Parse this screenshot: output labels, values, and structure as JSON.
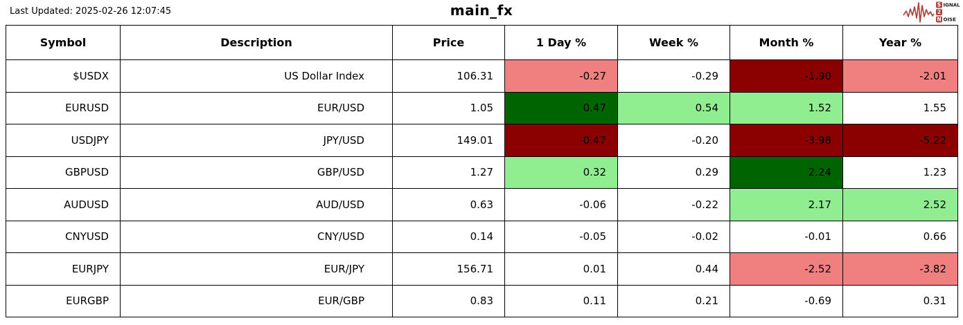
{
  "header": {
    "last_updated": "Last Updated: 2025-02-26 12:07:45",
    "title": "main_fx",
    "logo": {
      "wave_color": "#b0403a",
      "line1_box": "S",
      "line1_rest": "IGNAL",
      "line2_box": "2",
      "line3_box": "N",
      "line3_rest": "OISE"
    }
  },
  "colors": {
    "white": "#ffffff",
    "lightred": "#f08080",
    "darkred": "#8b0000",
    "lightgreen": "#90ee90",
    "darkgreen": "#006400"
  },
  "table": {
    "headers": [
      "Symbol",
      "Description",
      "Price",
      "1 Day %",
      "Week %",
      "Month %",
      "Year %"
    ],
    "rows": [
      {
        "symbol": "$USDX",
        "description": "US Dollar Index",
        "price": "106.31",
        "pcts": [
          {
            "v": "-0.27",
            "bg": "lightred"
          },
          {
            "v": "-0.29",
            "bg": "white"
          },
          {
            "v": "-1.90",
            "bg": "darkred"
          },
          {
            "v": "-2.01",
            "bg": "lightred"
          }
        ]
      },
      {
        "symbol": "EURUSD",
        "description": "EUR/USD",
        "price": "1.05",
        "pcts": [
          {
            "v": "0.47",
            "bg": "darkgreen"
          },
          {
            "v": "0.54",
            "bg": "lightgreen"
          },
          {
            "v": "1.52",
            "bg": "lightgreen"
          },
          {
            "v": "1.55",
            "bg": "white"
          }
        ]
      },
      {
        "symbol": "USDJPY",
        "description": "JPY/USD",
        "price": "149.01",
        "pcts": [
          {
            "v": "-0.47",
            "bg": "darkred"
          },
          {
            "v": "-0.20",
            "bg": "white"
          },
          {
            "v": "-3.98",
            "bg": "darkred"
          },
          {
            "v": "-5.22",
            "bg": "darkred"
          }
        ]
      },
      {
        "symbol": "GBPUSD",
        "description": "GBP/USD",
        "price": "1.27",
        "pcts": [
          {
            "v": "0.32",
            "bg": "lightgreen"
          },
          {
            "v": "0.29",
            "bg": "white"
          },
          {
            "v": "2.24",
            "bg": "darkgreen"
          },
          {
            "v": "1.23",
            "bg": "white"
          }
        ]
      },
      {
        "symbol": "AUDUSD",
        "description": "AUD/USD",
        "price": "0.63",
        "pcts": [
          {
            "v": "-0.06",
            "bg": "white"
          },
          {
            "v": "-0.22",
            "bg": "white"
          },
          {
            "v": "2.17",
            "bg": "lightgreen"
          },
          {
            "v": "2.52",
            "bg": "lightgreen"
          }
        ]
      },
      {
        "symbol": "CNYUSD",
        "description": "CNY/USD",
        "price": "0.14",
        "pcts": [
          {
            "v": "-0.05",
            "bg": "white"
          },
          {
            "v": "-0.02",
            "bg": "white"
          },
          {
            "v": "-0.01",
            "bg": "white"
          },
          {
            "v": "0.66",
            "bg": "white"
          }
        ]
      },
      {
        "symbol": "EURJPY",
        "description": "EUR/JPY",
        "price": "156.71",
        "pcts": [
          {
            "v": "0.01",
            "bg": "white"
          },
          {
            "v": "0.44",
            "bg": "white"
          },
          {
            "v": "-2.52",
            "bg": "lightred"
          },
          {
            "v": "-3.82",
            "bg": "lightred"
          }
        ]
      },
      {
        "symbol": "EURGBP",
        "description": "EUR/GBP",
        "price": "0.83",
        "pcts": [
          {
            "v": "0.11",
            "bg": "white"
          },
          {
            "v": "0.21",
            "bg": "white"
          },
          {
            "v": "-0.69",
            "bg": "white"
          },
          {
            "v": "0.31",
            "bg": "white"
          }
        ]
      }
    ]
  },
  "chart_data": {
    "type": "table",
    "title": "main_fx",
    "last_updated": "2025-02-26 12:07:45",
    "columns": [
      "Symbol",
      "Description",
      "Price",
      "1 Day %",
      "Week %",
      "Month %",
      "Year %"
    ],
    "rows": [
      [
        "$USDX",
        "US Dollar Index",
        106.31,
        -0.27,
        -0.29,
        -1.9,
        -2.01
      ],
      [
        "EURUSD",
        "EUR/USD",
        1.05,
        0.47,
        0.54,
        1.52,
        1.55
      ],
      [
        "USDJPY",
        "JPY/USD",
        149.01,
        -0.47,
        -0.2,
        -3.98,
        -5.22
      ],
      [
        "GBPUSD",
        "GBP/USD",
        1.27,
        0.32,
        0.29,
        2.24,
        1.23
      ],
      [
        "AUDUSD",
        "AUD/USD",
        0.63,
        -0.06,
        -0.22,
        2.17,
        2.52
      ],
      [
        "CNYUSD",
        "CNY/USD",
        0.14,
        -0.05,
        -0.02,
        -0.01,
        0.66
      ],
      [
        "EURJPY",
        "EUR/JPY",
        156.71,
        0.01,
        0.44,
        -2.52,
        -3.82
      ],
      [
        "EURGBP",
        "EUR/GBP",
        0.83,
        0.11,
        0.21,
        -0.69,
        0.31
      ]
    ],
    "legend": "cell shading: dark green = strong gain, light green = gain, light red = loss, dark red = strong loss, white = neutral"
  }
}
